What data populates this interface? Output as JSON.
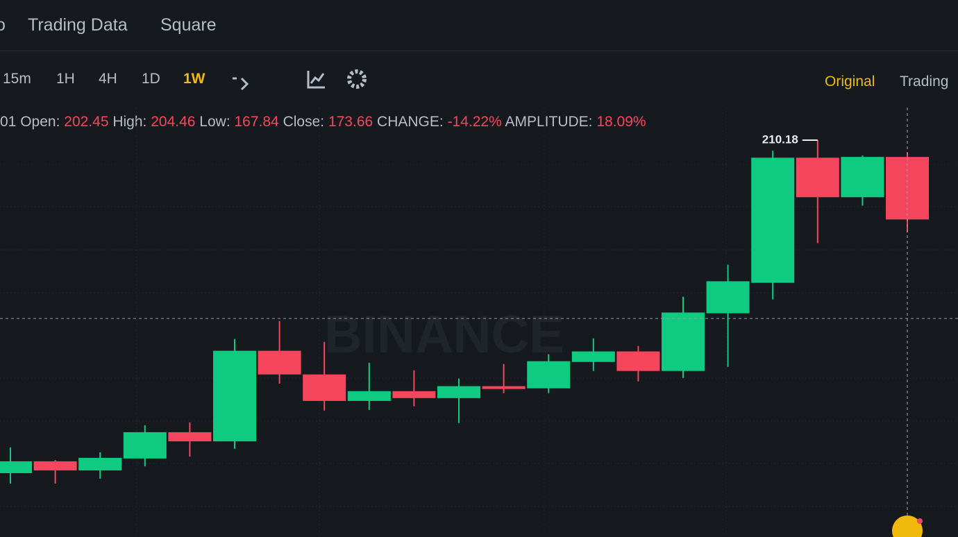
{
  "nav": {
    "items": [
      "o",
      "Trading Data",
      "Square"
    ]
  },
  "toolbar": {
    "intervals": [
      "15m",
      "1H",
      "4H",
      "1D",
      "1W"
    ],
    "active": "1W",
    "views": [
      "Original",
      "Trading"
    ]
  },
  "info": {
    "date": "01",
    "open_label": "Open:",
    "high_label": "High:",
    "low_label": "Low:",
    "close_label": "Close:",
    "change_label": "CHANGE:",
    "change": "-14.22%",
    "amplitude_label": "AMPLITUDE:",
    "amplitude": "18.09%"
  },
  "watermark": "BINANCE",
  "chart_data": {
    "type": "candlestick",
    "up_color": "#0ecb81",
    "down_color": "#f6465d",
    "grid": true,
    "open": [
      56.85,
      62.3,
      58.1,
      63.6,
      75.7,
      71.5,
      113.2,
      102.3,
      90.1,
      94.6,
      91.4,
      96.9,
      95.9,
      108.05,
      112.9,
      103.9,
      130.45,
      144.5,
      202.1,
      183.9,
      202.45
    ],
    "high": [
      68.7,
      62.9,
      66.45,
      78.9,
      80.2,
      118.6,
      126.9,
      117.3,
      107.7,
      104.2,
      100.4,
      107.1,
      111.6,
      118.9,
      115.4,
      138.1,
      152.85,
      205.3,
      210.18,
      203.1,
      204.46
    ],
    "low": [
      52.05,
      52.05,
      54.3,
      60.0,
      64.5,
      68.05,
      98.1,
      85.65,
      85.95,
      87.6,
      79.9,
      93.7,
      93.7,
      103.9,
      99.1,
      100.7,
      105.8,
      136.85,
      162.8,
      180.05,
      167.84
    ],
    "close": [
      62.3,
      58.1,
      63.9,
      75.7,
      71.5,
      113.2,
      102.3,
      90.1,
      94.6,
      91.4,
      96.9,
      95.6,
      108.4,
      112.9,
      103.9,
      130.8,
      145.2,
      202.1,
      183.9,
      202.45,
      173.66
    ]
  }
}
